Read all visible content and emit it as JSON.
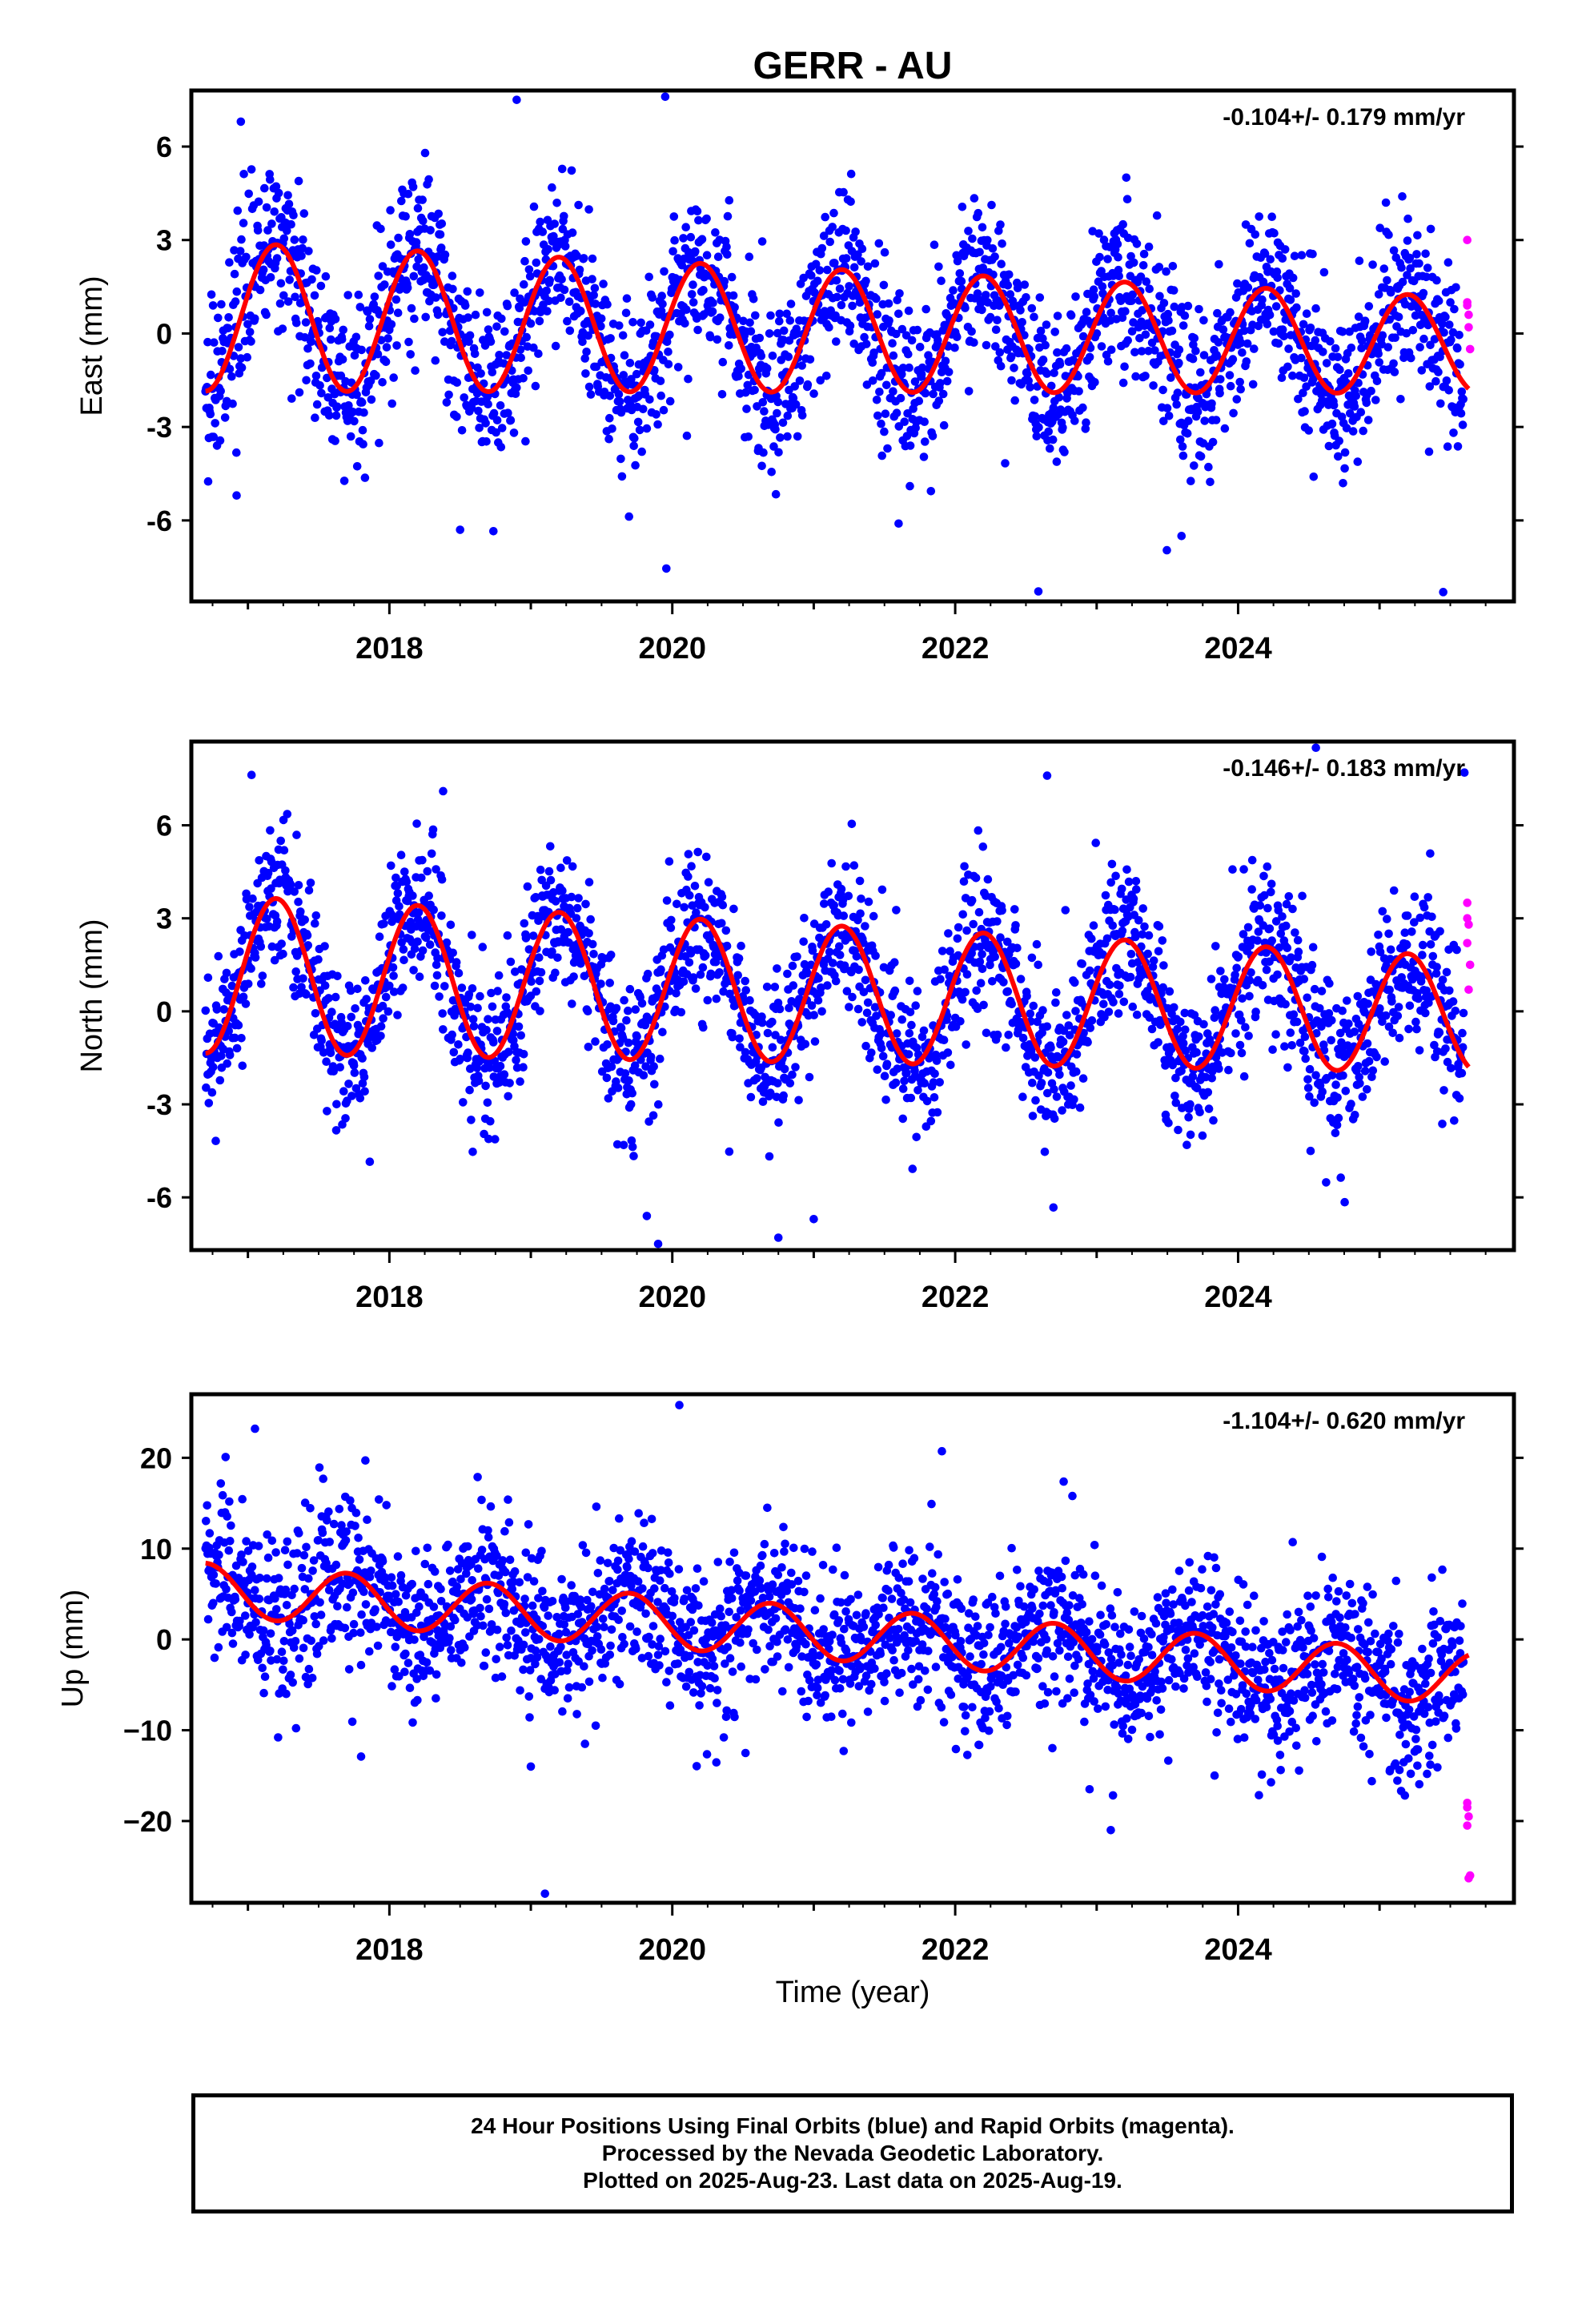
{
  "title": "GERR - AU",
  "xlabel": "Time (year)",
  "x_tick_labels": [
    "2018",
    "2020",
    "2022",
    "2024"
  ],
  "colors": {
    "final": "#0000ff",
    "rapid": "#ff00ff",
    "model": "#ff0000"
  },
  "chart_data": [
    {
      "type": "scatter",
      "component": "east",
      "ylabel": "East (mm)",
      "rate_label": "-0.104+/- 0.179 mm/yr",
      "xlim": [
        2016.6,
        2025.95
      ],
      "ylim": [
        -8.6,
        7.8
      ],
      "y_ticks": [
        6,
        3,
        0,
        -3,
        -6
      ],
      "y_tick_labels": [
        "6",
        "3",
        "0",
        "-3",
        "-6"
      ],
      "model": {
        "offset": 0.55,
        "rate": -0.104,
        "amp_cos": -2.4,
        "amp_sin": 0.0,
        "amp_decay": 0.04,
        "start": 2016.7,
        "end": 2025.63,
        "t0": 2016.7
      },
      "final_orbits": {
        "start": 2016.7,
        "end": 2025.6,
        "scatter": 1.3
      },
      "rapid_orbits": [
        [
          2025.62,
          3.0
        ],
        [
          2025.62,
          0.9
        ],
        [
          2025.63,
          0.6
        ],
        [
          2025.64,
          -0.5
        ],
        [
          2025.63,
          0.2
        ],
        [
          2025.62,
          1.0
        ]
      ],
      "outliers": [
        [
          2025.45,
          -8.3
        ],
        [
          2016.95,
          6.8
        ],
        [
          2018.9,
          7.5
        ],
        [
          2019.95,
          7.6
        ],
        [
          2018.5,
          -6.3
        ],
        [
          2023.6,
          -6.5
        ],
        [
          2021.6,
          -6.1
        ],
        [
          2016.92,
          -5.2
        ]
      ]
    },
    {
      "type": "scatter",
      "component": "north",
      "ylabel": "North (mm)",
      "rate_label": "-0.146+/- 0.183 mm/yr",
      "xlim": [
        2016.6,
        2025.95
      ],
      "ylim": [
        -7.7,
        8.7
      ],
      "y_ticks": [
        6,
        3,
        0,
        -3,
        -6
      ],
      "y_tick_labels": [
        "6",
        "3",
        "0",
        "-3",
        "-6"
      ],
      "model": {
        "offset": 1.2,
        "rate": -0.146,
        "amp_cos": -2.55,
        "amp_sin": 0.0,
        "amp_decay": 0.03,
        "start": 2016.7,
        "end": 2025.63,
        "t0": 2016.7
      },
      "final_orbits": {
        "start": 2016.7,
        "end": 2025.6,
        "scatter": 1.2
      },
      "rapid_orbits": [
        [
          2025.62,
          3.5
        ],
        [
          2025.63,
          2.8
        ],
        [
          2025.62,
          2.2
        ],
        [
          2025.64,
          1.5
        ],
        [
          2025.63,
          0.7
        ],
        [
          2025.62,
          3.0
        ]
      ],
      "outliers": [
        [
          2025.6,
          7.7
        ],
        [
          2024.55,
          8.5
        ],
        [
          2018.38,
          7.1
        ],
        [
          2022.65,
          7.6
        ],
        [
          2019.9,
          -7.5
        ],
        [
          2020.75,
          -7.3
        ],
        [
          2019.82,
          -6.6
        ],
        [
          2021.0,
          -6.7
        ]
      ]
    },
    {
      "type": "scatter",
      "component": "up",
      "ylabel": "Up (mm)",
      "rate_label": "-1.104+/- 0.620 mm/yr",
      "xlim": [
        2016.6,
        2025.95
      ],
      "ylim": [
        -29,
        27
      ],
      "y_ticks": [
        20,
        10,
        0,
        -10,
        -20
      ],
      "y_tick_labels": [
        "20",
        "10",
        "0",
        "−10",
        "−20"
      ],
      "model": {
        "offset": 5.5,
        "rate": -1.104,
        "amp_cos": 2.9,
        "amp_sin": 0.0,
        "amp_decay": 0.0,
        "start": 2016.7,
        "end": 2025.63,
        "t0": 2016.7
      },
      "final_orbits": {
        "start": 2016.7,
        "end": 2025.6,
        "scatter": 4.2
      },
      "rapid_orbits": [
        [
          2025.62,
          -18.5
        ],
        [
          2025.63,
          -19.5
        ],
        [
          2025.62,
          -20.5
        ],
        [
          2025.64,
          -26.0
        ],
        [
          2025.63,
          -26.3
        ],
        [
          2025.62,
          -18.0
        ]
      ],
      "outliers": [
        [
          2019.1,
          -28.0
        ],
        [
          2020.05,
          25.8
        ],
        [
          2017.05,
          23.2
        ],
        [
          2017.8,
          -12.9
        ],
        [
          2023.1,
          -21.0
        ],
        [
          2022.95,
          -16.5
        ],
        [
          2019.0,
          -14.0
        ]
      ]
    }
  ],
  "footer": {
    "line1": "24 Hour Positions Using Final Orbits (blue) and Rapid Orbits (magenta).",
    "line2": "Processed by the Nevada Geodetic Laboratory.",
    "line3": "Plotted on 2025-Aug-23. Last data on 2025-Aug-19."
  }
}
